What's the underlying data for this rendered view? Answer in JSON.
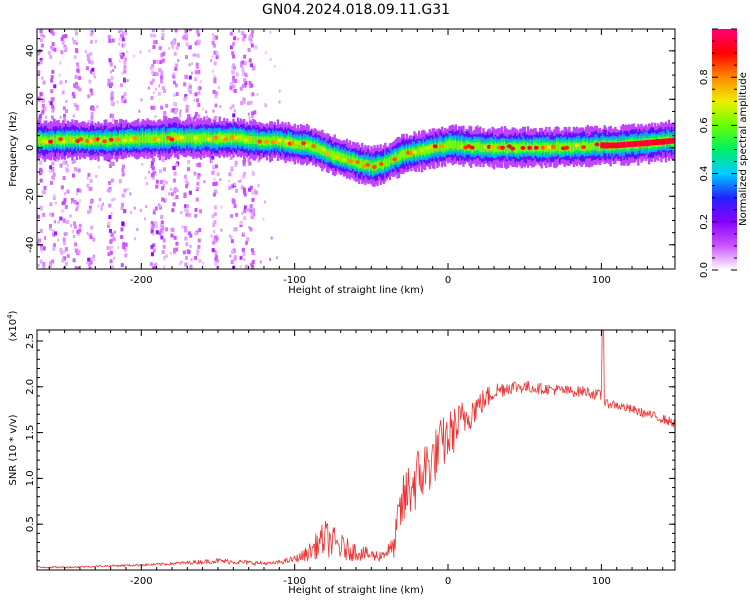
{
  "title": "GN04.2024.018.09.11.G31",
  "chart_data": [
    {
      "type": "heatmap",
      "xlabel": "Height of straight line (km)",
      "ylabel": "Frequency (Hz)",
      "xlim": [
        -268,
        148
      ],
      "ylim": [
        -50,
        49
      ],
      "x_ticks": [
        -200,
        -100,
        0,
        100
      ],
      "x_tick_labels": [
        "-200",
        "-100",
        "0",
        "100"
      ],
      "y_ticks": [
        -40,
        -20,
        0,
        20,
        40
      ],
      "y_tick_labels": [
        "-40",
        "-20",
        "0",
        "20",
        "40"
      ],
      "colorbar": {
        "label": "Normalized spectral amplitude",
        "range": [
          0,
          1
        ],
        "ticks": [
          0.0,
          0.2,
          0.4,
          0.6,
          0.8
        ],
        "tick_labels": [
          "0.0",
          "0.2",
          "0.4",
          "0.6",
          "0.8"
        ],
        "colors": [
          "#ffffff",
          "#cc55ff",
          "#8800ff",
          "#2222ff",
          "#00ccff",
          "#00ee66",
          "#66ff00",
          "#eeee00",
          "#ff8800",
          "#ff0000",
          "#ff0077"
        ]
      },
      "ridge": {
        "x": [
          -268,
          -240,
          -220,
          -200,
          -180,
          -160,
          -140,
          -120,
          -105,
          -95,
          -85,
          -75,
          -65,
          -55,
          -48,
          -40,
          -30,
          -20,
          -10,
          -3,
          0,
          3,
          10,
          30,
          60,
          90,
          100,
          110,
          120,
          130,
          140,
          148
        ],
        "y": [
          3,
          3,
          3,
          3.5,
          4,
          4,
          4,
          3,
          2.5,
          1.5,
          0,
          -3,
          -5,
          -7,
          -8,
          -6,
          -3,
          -1.5,
          0,
          0.5,
          1,
          1.5,
          0.5,
          0,
          0,
          0.5,
          1,
          1,
          1.5,
          2,
          2.5,
          3
        ]
      },
      "noise_columns_x": [
        -265,
        -258,
        -250,
        -242,
        -233,
        -220,
        -212,
        -192,
        -186,
        -178,
        -170,
        -163,
        -152,
        -140,
        -133,
        -128
      ]
    },
    {
      "type": "line",
      "xlabel": "Height of straight line (km)",
      "ylabel": "SNR (10 * v/v)",
      "y_multiplier": "(x10",
      "y_multiplier_exp": "4",
      "y_multiplier_close": ")",
      "xlim": [
        -268,
        148
      ],
      "ylim": [
        0,
        2.62
      ],
      "x_ticks": [
        -200,
        -100,
        0,
        100
      ],
      "x_tick_labels": [
        "-200",
        "-100",
        "0",
        "100"
      ],
      "y_ticks": [
        0.5,
        1.0,
        1.5,
        2.0,
        2.5
      ],
      "y_tick_labels": [
        "0.5",
        "1.0",
        "1.5",
        "2.0",
        "2.5"
      ],
      "line_color": "#ee3333",
      "series": [
        {
          "x": [
            -268,
            -250,
            -230,
            -210,
            -190,
            -170,
            -150,
            -130,
            -115,
            -105,
            -100,
            -95,
            -90,
            -85,
            -80,
            -75,
            -70,
            -65,
            -60,
            -55,
            -50,
            -45,
            -40,
            -35,
            -33,
            -30,
            -25,
            -20,
            -15,
            -10,
            -5,
            0,
            5,
            10,
            20,
            30,
            40,
            50,
            60,
            70,
            80,
            90,
            100,
            101,
            102,
            105,
            110,
            120,
            130,
            140,
            148
          ],
          "y": [
            0.03,
            0.03,
            0.04,
            0.05,
            0.06,
            0.08,
            0.1,
            0.08,
            0.07,
            0.1,
            0.12,
            0.15,
            0.2,
            0.28,
            0.35,
            0.3,
            0.25,
            0.22,
            0.2,
            0.18,
            0.16,
            0.15,
            0.2,
            0.25,
            0.5,
            0.7,
            0.9,
            1.0,
            1.1,
            1.2,
            1.35,
            1.45,
            1.55,
            1.65,
            1.8,
            1.95,
            2.0,
            2.0,
            1.98,
            1.97,
            1.95,
            1.95,
            1.9,
            2.4,
            1.8,
            1.82,
            1.8,
            1.75,
            1.7,
            1.65,
            1.6
          ],
          "noise": [
            0.01,
            0.01,
            0.01,
            0.012,
            0.015,
            0.02,
            0.03,
            0.025,
            0.02,
            0.03,
            0.04,
            0.06,
            0.1,
            0.15,
            0.2,
            0.18,
            0.15,
            0.12,
            0.1,
            0.08,
            0.07,
            0.06,
            0.08,
            0.12,
            0.25,
            0.3,
            0.35,
            0.35,
            0.35,
            0.3,
            0.3,
            0.28,
            0.25,
            0.22,
            0.15,
            0.1,
            0.08,
            0.07,
            0.06,
            0.06,
            0.06,
            0.06,
            0.06,
            0.2,
            0.05,
            0.05,
            0.05,
            0.05,
            0.05,
            0.05,
            0.05
          ]
        }
      ]
    }
  ]
}
